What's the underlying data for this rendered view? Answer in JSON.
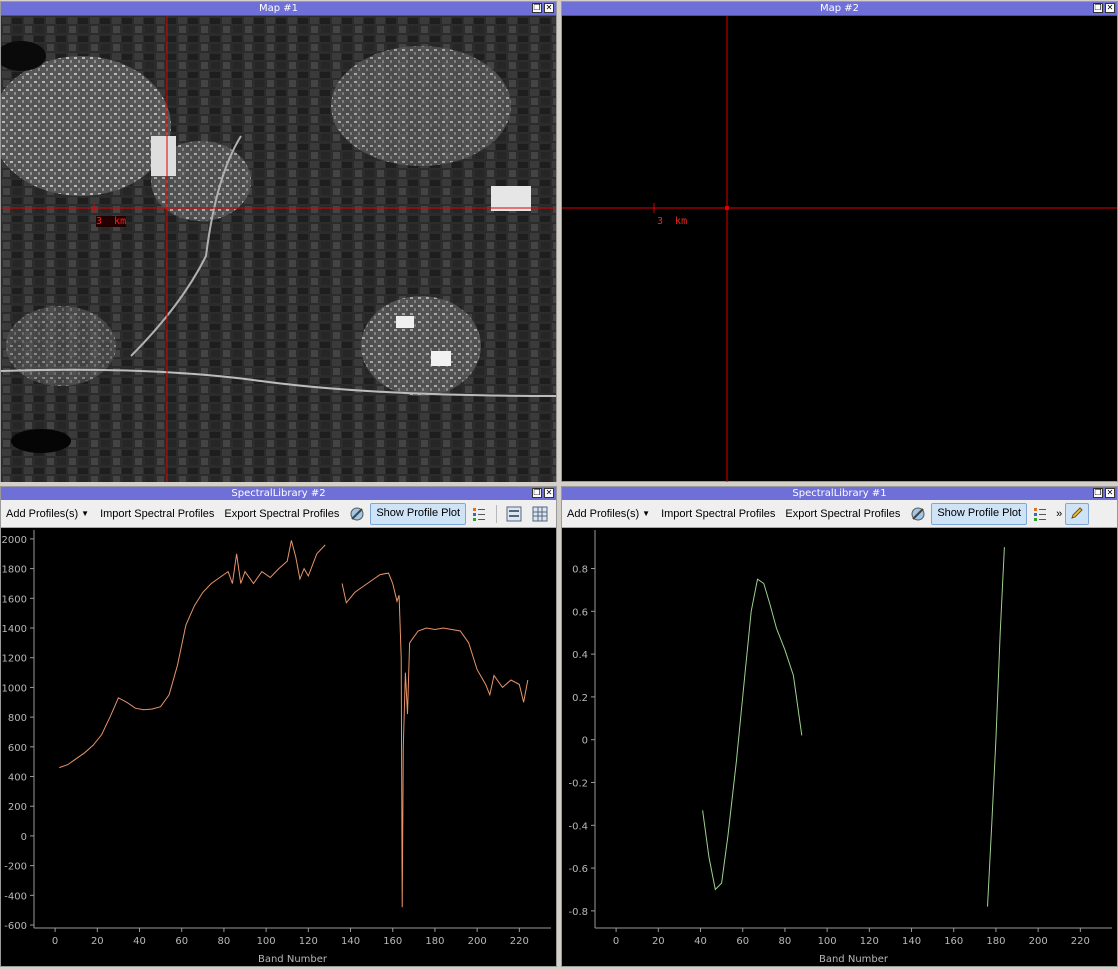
{
  "windows": {
    "map1": {
      "title": "Map #1",
      "scale_label": "3  km"
    },
    "map2": {
      "title": "Map #2",
      "scale_label": "3  km"
    },
    "speclib2": {
      "title": "SpectralLibrary #2"
    },
    "speclib1": {
      "title": "SpectralLibrary #1"
    }
  },
  "toolbar": {
    "add_profiles": "Add Profiles(s)",
    "import": "Import Spectral Profiles",
    "export": "Export Spectral Profiles",
    "show_plot": "Show Profile Plot",
    "more": "»"
  },
  "icons": {
    "crosshair_color": "#e00000",
    "profile_color_left": "#e8946a",
    "profile_color_right": "#9fd08f"
  },
  "chart_data": [
    {
      "type": "line",
      "xlabel": "Band Number",
      "ylabel": "",
      "xlim": [
        -10,
        235
      ],
      "ylim": [
        -620,
        2060
      ],
      "xticks": [
        0,
        20,
        40,
        60,
        80,
        100,
        120,
        140,
        160,
        180,
        200,
        220
      ],
      "yticks": [
        -600,
        -400,
        -200,
        0,
        200,
        400,
        600,
        800,
        1000,
        1200,
        1400,
        1600,
        1800,
        2000
      ],
      "series": [
        {
          "segments": [
            [
              [
                2,
                460
              ],
              [
                6,
                480
              ],
              [
                10,
                520
              ],
              [
                14,
                560
              ],
              [
                18,
                610
              ],
              [
                22,
                680
              ],
              [
                26,
                800
              ],
              [
                30,
                930
              ],
              [
                34,
                900
              ],
              [
                38,
                860
              ],
              [
                42,
                850
              ],
              [
                46,
                855
              ],
              [
                50,
                870
              ],
              [
                54,
                950
              ],
              [
                58,
                1150
              ],
              [
                62,
                1420
              ],
              [
                66,
                1550
              ],
              [
                70,
                1640
              ],
              [
                74,
                1700
              ],
              [
                78,
                1740
              ],
              [
                82,
                1780
              ],
              [
                84,
                1700
              ],
              [
                86,
                1900
              ],
              [
                88,
                1700
              ],
              [
                90,
                1780
              ],
              [
                94,
                1700
              ],
              [
                98,
                1780
              ],
              [
                102,
                1740
              ],
              [
                106,
                1800
              ],
              [
                110,
                1850
              ],
              [
                112,
                1990
              ],
              [
                114,
                1880
              ],
              [
                116,
                1730
              ],
              [
                118,
                1800
              ],
              [
                120,
                1750
              ],
              [
                124,
                1900
              ],
              [
                128,
                1960
              ]
            ],
            [
              [
                136,
                1700
              ],
              [
                138,
                1570
              ],
              [
                142,
                1640
              ],
              [
                146,
                1680
              ],
              [
                150,
                1720
              ],
              [
                154,
                1760
              ],
              [
                158,
                1770
              ],
              [
                160,
                1700
              ],
              [
                162,
                1580
              ],
              [
                163,
                1620
              ],
              [
                164,
                1200
              ],
              [
                164.5,
                -480
              ],
              [
                165,
                600
              ],
              [
                166,
                1100
              ],
              [
                167,
                820
              ],
              [
                168,
                1300
              ],
              [
                172,
                1380
              ],
              [
                176,
                1400
              ],
              [
                180,
                1390
              ],
              [
                184,
                1400
              ],
              [
                188,
                1390
              ],
              [
                192,
                1380
              ],
              [
                196,
                1300
              ],
              [
                200,
                1120
              ],
              [
                204,
                1020
              ],
              [
                206,
                950
              ],
              [
                208,
                1080
              ],
              [
                212,
                1000
              ],
              [
                216,
                1050
              ],
              [
                220,
                1020
              ],
              [
                222,
                900
              ],
              [
                224,
                1050
              ]
            ]
          ]
        }
      ]
    },
    {
      "type": "line",
      "xlabel": "Band Number",
      "ylabel": "",
      "xlim": [
        -10,
        235
      ],
      "ylim": [
        -0.88,
        0.98
      ],
      "xticks": [
        0,
        20,
        40,
        60,
        80,
        100,
        120,
        140,
        160,
        180,
        200,
        220
      ],
      "yticks": [
        -0.8,
        -0.6,
        -0.4,
        -0.2,
        0,
        0.2,
        0.4,
        0.6,
        0.8
      ],
      "ytick_labels": [
        "-0.8",
        "-0.6",
        "-0.4",
        "-0.2",
        "0",
        "0.2",
        "0.4",
        "0.6",
        "0.8"
      ],
      "series": [
        {
          "segments": [
            [
              [
                41,
                -0.33
              ],
              [
                44,
                -0.55
              ],
              [
                47,
                -0.7
              ],
              [
                50,
                -0.67
              ],
              [
                53,
                -0.45
              ],
              [
                57,
                -0.1
              ],
              [
                61,
                0.3
              ],
              [
                64,
                0.6
              ],
              [
                67,
                0.75
              ],
              [
                70,
                0.73
              ],
              [
                73,
                0.63
              ],
              [
                76,
                0.52
              ],
              [
                80,
                0.42
              ],
              [
                84,
                0.3
              ],
              [
                88,
                0.02
              ]
            ],
            [
              [
                176,
                -0.78
              ],
              [
                178,
                -0.4
              ],
              [
                180,
                0.0
              ],
              [
                182,
                0.5
              ],
              [
                184,
                0.9
              ]
            ]
          ]
        }
      ]
    }
  ]
}
